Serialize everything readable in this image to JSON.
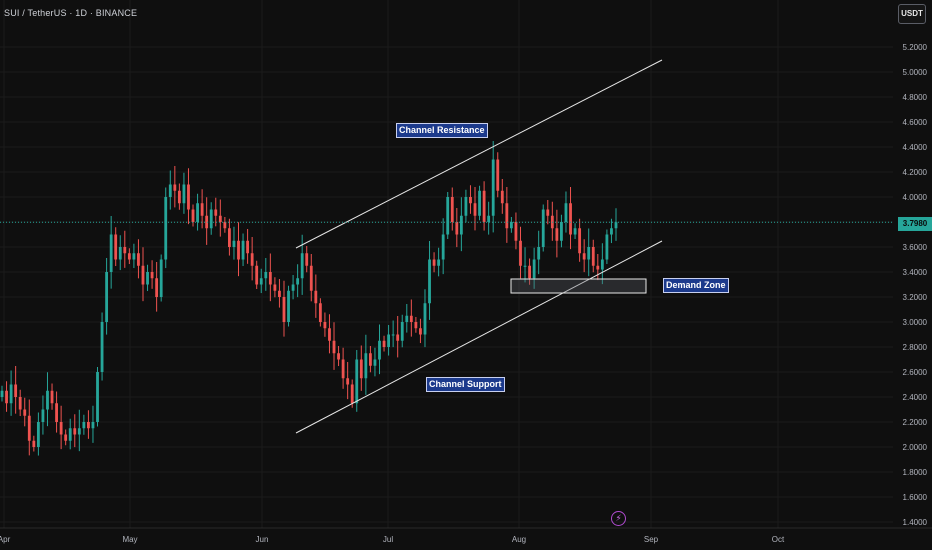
{
  "header": {
    "symbol_text": "SUI / TetherUS · 1D · BINANCE",
    "currency_button": "USDT"
  },
  "annotations": {
    "resistance_label": "Channel Resistance",
    "support_label": "Channel Support",
    "demand_label": "Demand Zone"
  },
  "price_scale": {
    "last_price": "3.7980",
    "last_price_color": "#26a69a"
  },
  "colors": {
    "up": "#26a69a",
    "down": "#ef5350",
    "background": "#0f0f0f",
    "label_bg": "#1c3a8c"
  },
  "chart_data": {
    "type": "candlestick",
    "symbol": "SUI / TetherUS",
    "interval": "1D",
    "exchange": "BINANCE",
    "yticks": [
      "5.2000",
      "5.0000",
      "4.8000",
      "4.6000",
      "4.4000",
      "4.2000",
      "4.0000",
      "3.8000",
      "3.6000",
      "3.4000",
      "3.2000",
      "3.0000",
      "2.8000",
      "2.6000",
      "2.4000",
      "2.2000",
      "2.0000",
      "1.8000",
      "1.6000",
      "1.4000"
    ],
    "xticks": [
      "Apr",
      "May",
      "Jun",
      "Jul",
      "Aug",
      "Sep",
      "Oct"
    ],
    "ylim": [
      1.4,
      5.2
    ],
    "grid": true,
    "last_price": 3.798,
    "close": [
      2.45,
      2.35,
      2.5,
      2.4,
      2.3,
      2.25,
      2.05,
      2.0,
      2.2,
      2.3,
      2.45,
      2.35,
      2.2,
      2.1,
      2.05,
      2.15,
      2.1,
      2.15,
      2.2,
      2.15,
      2.2,
      2.6,
      3.0,
      3.4,
      3.7,
      3.5,
      3.6,
      3.55,
      3.5,
      3.55,
      3.45,
      3.3,
      3.4,
      3.35,
      3.2,
      3.5,
      4.0,
      4.1,
      4.05,
      3.95,
      4.1,
      3.9,
      3.8,
      3.95,
      3.85,
      3.75,
      3.9,
      3.85,
      3.8,
      3.75,
      3.6,
      3.65,
      3.5,
      3.65,
      3.55,
      3.45,
      3.3,
      3.35,
      3.4,
      3.3,
      3.25,
      3.2,
      3.0,
      3.25,
      3.3,
      3.35,
      3.55,
      3.45,
      3.25,
      3.15,
      3.0,
      2.95,
      2.85,
      2.75,
      2.7,
      2.55,
      2.5,
      2.35,
      2.7,
      2.55,
      2.75,
      2.65,
      2.7,
      2.85,
      2.8,
      2.9,
      2.9,
      2.85,
      3.0,
      3.05,
      3.0,
      2.95,
      2.9,
      3.15,
      3.5,
      3.45,
      3.5,
      3.7,
      4.0,
      3.8,
      3.7,
      3.85,
      4.0,
      3.95,
      3.85,
      4.05,
      3.8,
      3.85,
      4.3,
      4.05,
      3.95,
      3.75,
      3.8,
      3.65,
      3.45,
      3.45,
      3.35,
      3.5,
      3.6,
      3.9,
      3.85,
      3.75,
      3.65,
      3.8,
      3.95,
      3.7,
      3.75,
      3.55,
      3.5,
      3.6,
      3.45,
      3.42,
      3.5,
      3.7,
      3.75,
      3.798
    ]
  }
}
